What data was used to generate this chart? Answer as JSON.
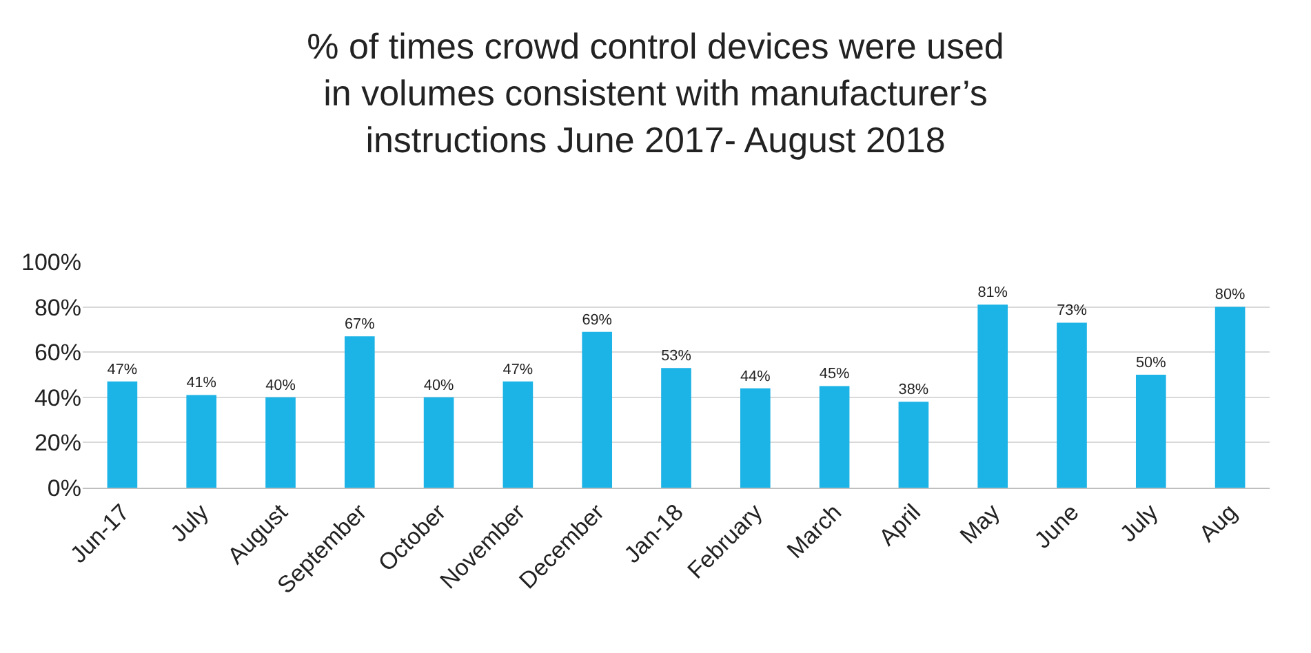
{
  "chart_data": {
    "type": "bar",
    "title": "% of times crowd control devices were used in volumes consistent with manufacturer’s instructions June 2017- August 2018",
    "categories": [
      "Jun-17",
      "July",
      "August",
      "September",
      "October",
      "November",
      "December",
      "Jan-18",
      "February",
      "March",
      "April",
      "May",
      "June",
      "July",
      "Aug"
    ],
    "values": [
      47,
      41,
      40,
      67,
      40,
      47,
      69,
      53,
      44,
      45,
      38,
      81,
      73,
      50,
      80
    ],
    "value_labels": [
      "47%",
      "41%",
      "40%",
      "67%",
      "40%",
      "47%",
      "69%",
      "53%",
      "44%",
      "45%",
      "38%",
      "81%",
      "73%",
      "50%",
      "80%"
    ],
    "color": "#1cb3e6",
    "ylim": [
      0,
      100
    ],
    "yticks": [
      {
        "value": 0,
        "label": "0%"
      },
      {
        "value": 20,
        "label": "20%"
      },
      {
        "value": 40,
        "label": "40%"
      },
      {
        "value": 60,
        "label": "60%"
      },
      {
        "value": 80,
        "label": "80%"
      },
      {
        "value": 100,
        "label": "100%"
      }
    ],
    "grid": "y",
    "legend": false
  }
}
